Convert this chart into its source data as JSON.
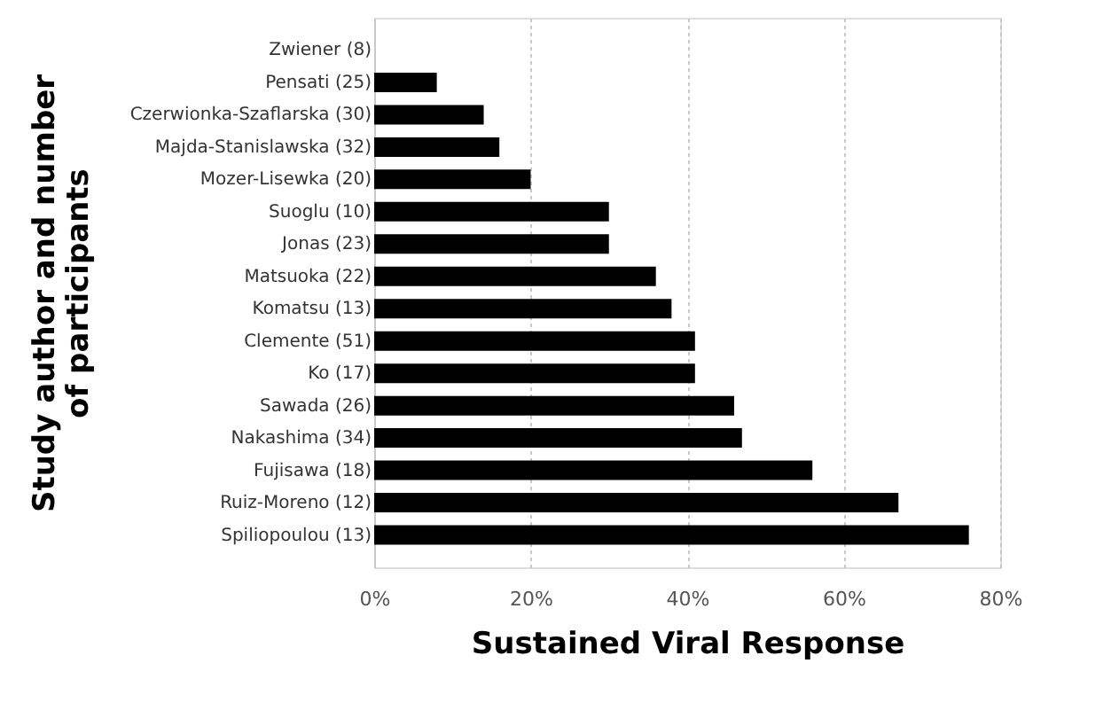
{
  "chart_data": {
    "type": "bar",
    "orientation": "horizontal",
    "xlabel": "Sustained Viral Response",
    "ylabel": "Study author  and number\nof participants",
    "categories": [
      "Zwiener (8)",
      "Pensati (25)",
      "Czerwionka-Szaflarska (30)",
      "Majda-Stanislawska (32)",
      "Mozer-Lisewka (20)",
      "Suoglu (10)",
      "Jonas (23)",
      "Matsuoka (22)",
      "Komatsu (13)",
      "Clemente (51)",
      "Ko (17)",
      "Sawada (26)",
      "Nakashima (34)",
      "Fujisawa (18)",
      "Ruiz-Moreno (12)",
      "Spiliopoulou (13)"
    ],
    "values": [
      0,
      8,
      14,
      16,
      20,
      30,
      30,
      36,
      38,
      41,
      41,
      46,
      47,
      56,
      67,
      76
    ],
    "color": "#000000",
    "xlim": [
      0,
      80
    ],
    "xticks": [
      {
        "value": 0,
        "label": "0%"
      },
      {
        "value": 20,
        "label": "20%"
      },
      {
        "value": 40,
        "label": "40%"
      },
      {
        "value": 60,
        "label": "60%"
      },
      {
        "value": 80,
        "label": "80%"
      }
    ],
    "grid": "x"
  }
}
